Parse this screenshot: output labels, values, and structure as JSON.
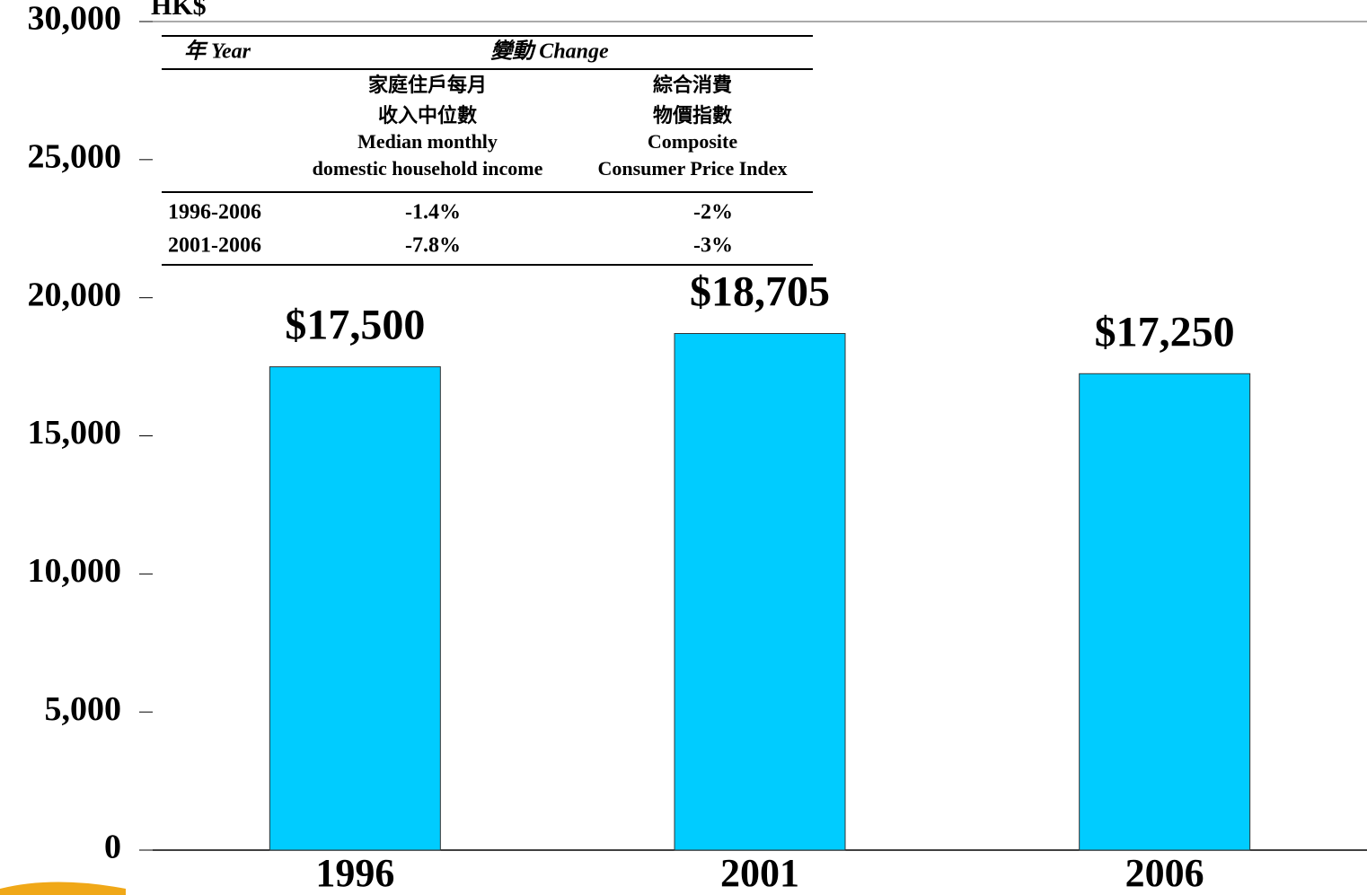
{
  "chart_data": {
    "type": "bar",
    "unit": "HK$",
    "categories": [
      "1996",
      "2001",
      "2006"
    ],
    "values": [
      17500,
      18705,
      17250
    ],
    "value_labels": [
      "$17,500",
      "$18,705",
      "$17,250"
    ],
    "color": "#00ccff",
    "ylim": [
      0,
      30000
    ],
    "yticks": [
      0,
      {
        "value": 5000,
        "label": "5,000"
      },
      {
        "value": 10000,
        "label": "10,000"
      },
      {
        "value": 15000,
        "label": "15,000"
      },
      {
        "value": 20000,
        "label": "20,000"
      },
      {
        "value": 25000,
        "label": "25,000"
      },
      {
        "value": 30000,
        "label": "30,000"
      }
    ],
    "grid": false
  },
  "table": {
    "headers": [
      "年 Year",
      "變動 Change"
    ],
    "columns": [
      {
        "zh": [
          "家庭住戶每月",
          "收入中位數"
        ],
        "en": [
          "Median monthly",
          "domestic household income"
        ]
      },
      {
        "zh": [
          "綜合消費",
          "物價指數"
        ],
        "en": [
          "Composite",
          "Consumer Price Index"
        ]
      }
    ],
    "rows": [
      [
        "1996-2006",
        "-1.4%",
        "-2%"
      ],
      [
        "2001-2006",
        "-7.8%",
        "-3%"
      ]
    ]
  }
}
